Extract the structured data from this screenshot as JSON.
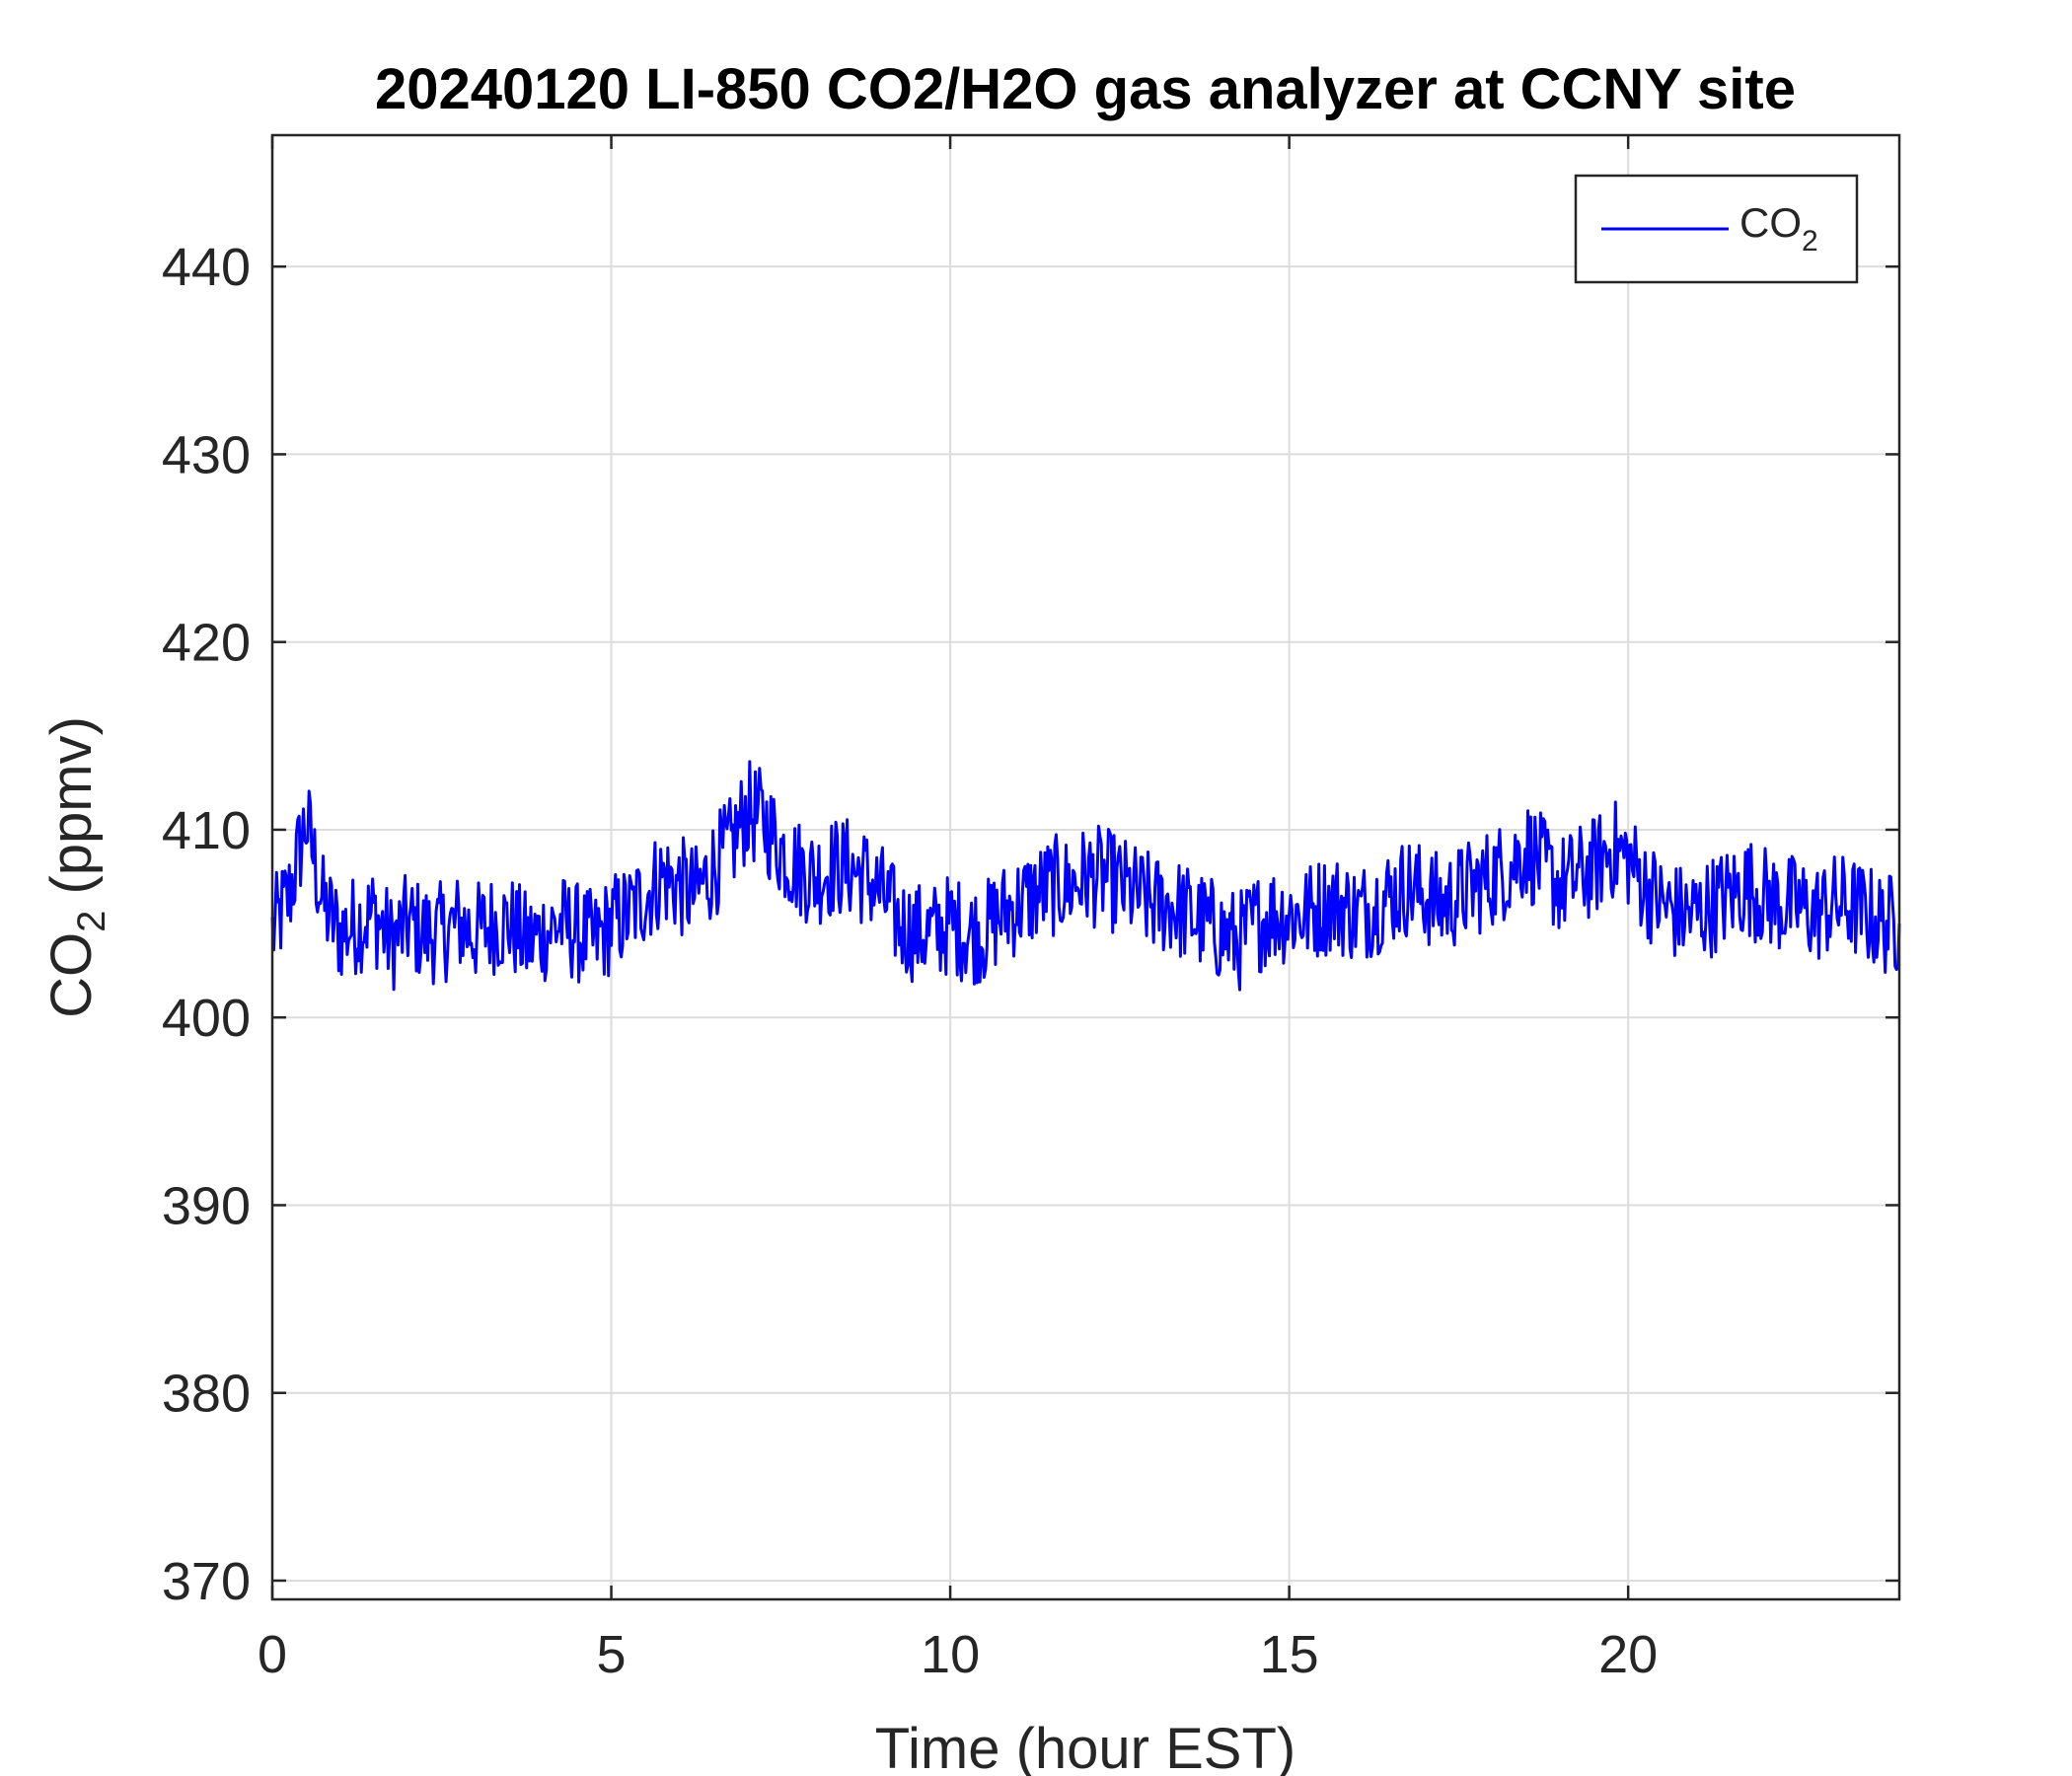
{
  "chart_data": {
    "type": "line",
    "title": "20240120 LI-850 CO2/H2O gas analyzer at CCNY site",
    "xlabel": "Time (hour EST)",
    "ylabel": {
      "base": "CO",
      "sub": "2",
      "rest": " (ppmv)"
    },
    "xlim": [
      0,
      24
    ],
    "ylim": [
      369,
      447
    ],
    "xticks": [
      0,
      5,
      10,
      15,
      20
    ],
    "yticks": [
      370,
      380,
      390,
      400,
      410,
      420,
      430,
      440
    ],
    "grid": true,
    "legend": {
      "placement": "top-right",
      "entries": [
        {
          "base": "CO",
          "sub": "2"
        }
      ]
    },
    "series": [
      {
        "name": "CO2",
        "color": "#0000ff",
        "x": [
          0,
          0.25,
          0.5,
          0.75,
          1,
          1.25,
          1.5,
          1.75,
          2,
          2.25,
          2.5,
          2.75,
          3,
          3.25,
          3.5,
          3.75,
          4,
          4.25,
          4.5,
          4.75,
          5,
          5.25,
          5.5,
          5.75,
          6,
          6.25,
          6.5,
          6.75,
          7,
          7.25,
          7.5,
          7.75,
          8,
          8.25,
          8.5,
          8.75,
          9,
          9.25,
          9.5,
          9.75,
          10,
          10.25,
          10.5,
          10.75,
          11,
          11.25,
          11.5,
          11.75,
          12,
          12.25,
          12.5,
          12.75,
          13,
          13.25,
          13.5,
          13.75,
          14,
          14.25,
          14.5,
          14.75,
          15,
          15.25,
          15.5,
          15.75,
          16,
          16.25,
          16.5,
          16.75,
          17,
          17.25,
          17.5,
          17.75,
          18,
          18.25,
          18.5,
          18.75,
          19,
          19.25,
          19.5,
          19.75,
          20,
          20.25,
          20.5,
          20.75,
          21,
          21.25,
          21.5,
          21.75,
          22,
          22.25,
          22.5,
          22.75,
          23,
          23.25,
          23.5,
          23.75,
          24
        ],
        "y": [
          404.5,
          406.5,
          410.5,
          406,
          404.5,
          405,
          405.5,
          404,
          405,
          404.5,
          404.5,
          405,
          404.5,
          405,
          405,
          404,
          404.5,
          405,
          404.5,
          404,
          405,
          405.5,
          406.5,
          407.5,
          407,
          406.5,
          408,
          409,
          411,
          410.5,
          409,
          408,
          407.5,
          408,
          408,
          407.5,
          406.5,
          405,
          404.5,
          404.5,
          405,
          404.5,
          404.5,
          405.5,
          406,
          406.5,
          407,
          407,
          407.5,
          407.5,
          407,
          406.5,
          406,
          406,
          405.5,
          405,
          404.5,
          404,
          405,
          405.5,
          405.5,
          405.5,
          406,
          406,
          405.5,
          406,
          406.5,
          407,
          406.5,
          406,
          406.5,
          407,
          407.5,
          408,
          409,
          408,
          407,
          407.5,
          408,
          409,
          408.5,
          407,
          406,
          405.5,
          405.5,
          406,
          406.5,
          407,
          406.5,
          406,
          406,
          405.5,
          406,
          406,
          405.5,
          405,
          405
        ]
      }
    ]
  }
}
